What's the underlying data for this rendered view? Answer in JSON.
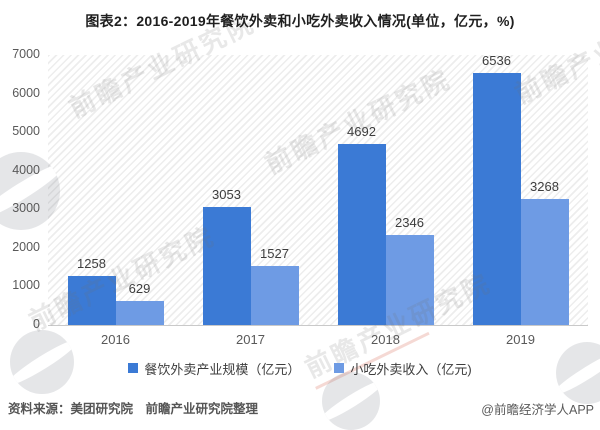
{
  "title": "图表2：2016-2019年餐饮外卖和小吃外卖收入情况(单位，亿元，%)",
  "chart_data": {
    "type": "bar",
    "categories": [
      "2016",
      "2017",
      "2018",
      "2019"
    ],
    "series": [
      {
        "name": "餐饮外卖产业规模（亿元）",
        "color": "#3B7AD5",
        "values": [
          1258,
          3053,
          4692,
          6536
        ]
      },
      {
        "name": "小吃外卖收入（亿元)",
        "color": "#6E9BE4",
        "values": [
          629,
          1527,
          2346,
          3268
        ]
      }
    ],
    "ylim": [
      0,
      7000
    ],
    "yticks": [
      0,
      1000,
      2000,
      3000,
      4000,
      5000,
      6000,
      7000
    ],
    "grid": false,
    "legend_position": "bottom",
    "bar_value_labels": true
  },
  "footer": {
    "source": "资料来源：美团研究院　前瞻产业研究院整理",
    "credit": "@前瞻经济学人APP"
  },
  "watermark": {
    "text": "前瞻产业研究院"
  }
}
